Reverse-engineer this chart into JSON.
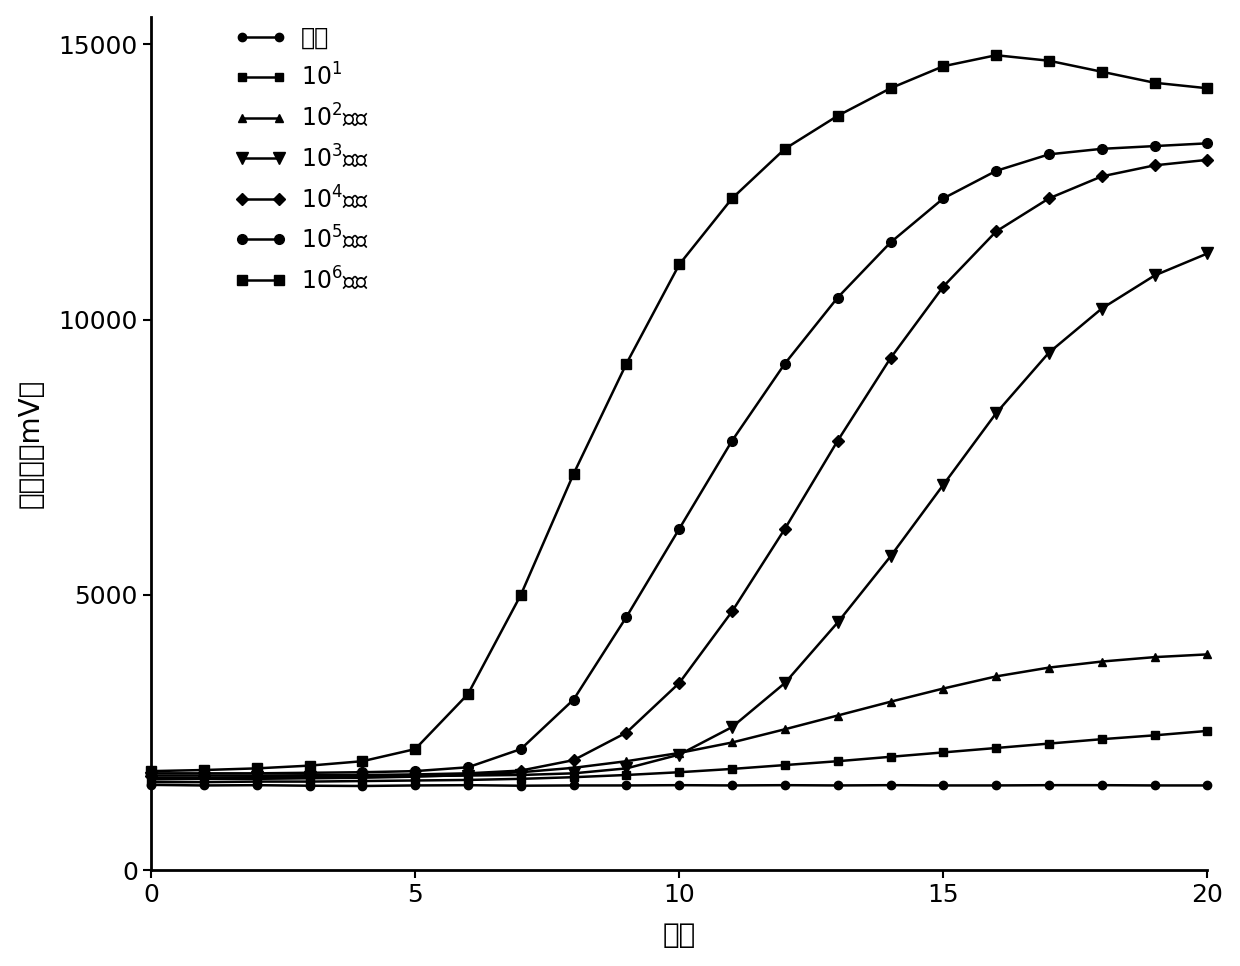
{
  "xlabel": "时间",
  "ylabel": "荧光値（mV）",
  "xlim": [
    0,
    20
  ],
  "ylim": [
    0,
    15500
  ],
  "yticks": [
    0,
    5000,
    10000,
    15000
  ],
  "xticks": [
    0,
    5,
    10,
    15,
    20
  ],
  "background_color": "#ffffff",
  "series": [
    {
      "label": "阴性",
      "marker": "o",
      "markersize": 6,
      "x": [
        0,
        1,
        2,
        3,
        4,
        5,
        6,
        7,
        8,
        9,
        10,
        11,
        12,
        13,
        14,
        15,
        16,
        17,
        18,
        19,
        20
      ],
      "y": [
        1550,
        1540,
        1545,
        1535,
        1530,
        1540,
        1545,
        1535,
        1540,
        1540,
        1545,
        1540,
        1545,
        1540,
        1545,
        1540,
        1540,
        1545,
        1545,
        1540,
        1540
      ]
    },
    {
      "label": "10$^1$",
      "marker": "s",
      "markersize": 6,
      "x": [
        0,
        1,
        2,
        3,
        4,
        5,
        6,
        7,
        8,
        9,
        10,
        11,
        12,
        13,
        14,
        15,
        16,
        17,
        18,
        19,
        20
      ],
      "y": [
        1600,
        1600,
        1610,
        1610,
        1620,
        1630,
        1640,
        1660,
        1690,
        1730,
        1780,
        1840,
        1910,
        1980,
        2060,
        2140,
        2220,
        2300,
        2380,
        2450,
        2530
      ]
    },
    {
      "label": "10$^2$拷贝",
      "marker": "^",
      "markersize": 6,
      "x": [
        0,
        1,
        2,
        3,
        4,
        5,
        6,
        7,
        8,
        9,
        10,
        11,
        12,
        13,
        14,
        15,
        16,
        17,
        18,
        19,
        20
      ],
      "y": [
        1650,
        1660,
        1660,
        1670,
        1680,
        1700,
        1730,
        1780,
        1860,
        1980,
        2130,
        2320,
        2560,
        2810,
        3060,
        3300,
        3520,
        3680,
        3790,
        3870,
        3920
      ]
    },
    {
      "label": "10$^3$拷贝",
      "marker": "v",
      "markersize": 8,
      "x": [
        0,
        1,
        2,
        3,
        4,
        5,
        6,
        7,
        8,
        9,
        10,
        11,
        12,
        13,
        14,
        15,
        16,
        17,
        18,
        19,
        20
      ],
      "y": [
        1680,
        1680,
        1690,
        1690,
        1700,
        1710,
        1720,
        1730,
        1760,
        1850,
        2100,
        2600,
        3400,
        4500,
        5700,
        7000,
        8300,
        9400,
        10200,
        10800,
        11200
      ]
    },
    {
      "label": "10$^4$拷贝",
      "marker": "D",
      "markersize": 6,
      "x": [
        0,
        1,
        2,
        3,
        4,
        5,
        6,
        7,
        8,
        9,
        10,
        11,
        12,
        13,
        14,
        15,
        16,
        17,
        18,
        19,
        20
      ],
      "y": [
        1720,
        1720,
        1720,
        1725,
        1730,
        1740,
        1760,
        1810,
        2000,
        2500,
        3400,
        4700,
        6200,
        7800,
        9300,
        10600,
        11600,
        12200,
        12600,
        12800,
        12900
      ]
    },
    {
      "label": "10$^5$拷贝",
      "marker": "o",
      "markersize": 7,
      "x": [
        0,
        1,
        2,
        3,
        4,
        5,
        6,
        7,
        8,
        9,
        10,
        11,
        12,
        13,
        14,
        15,
        16,
        17,
        18,
        19,
        20
      ],
      "y": [
        1760,
        1760,
        1760,
        1770,
        1780,
        1800,
        1870,
        2200,
        3100,
        4600,
        6200,
        7800,
        9200,
        10400,
        11400,
        12200,
        12700,
        13000,
        13100,
        13150,
        13200
      ]
    },
    {
      "label": "10$^6$拷贝",
      "marker": "s",
      "markersize": 7,
      "x": [
        0,
        1,
        2,
        3,
        4,
        5,
        6,
        7,
        8,
        9,
        10,
        11,
        12,
        13,
        14,
        15,
        16,
        17,
        18,
        19,
        20
      ],
      "y": [
        1800,
        1820,
        1850,
        1900,
        1980,
        2200,
        3200,
        5000,
        7200,
        9200,
        11000,
        12200,
        13100,
        13700,
        14200,
        14600,
        14800,
        14700,
        14500,
        14300,
        14200
      ]
    }
  ]
}
